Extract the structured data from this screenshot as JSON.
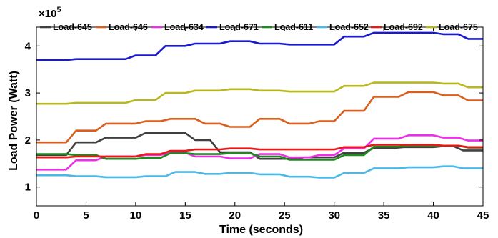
{
  "chart_data": {
    "type": "line",
    "xlabel": "Time (seconds)",
    "ylabel": "Load Power (Watt)",
    "y_exponent_label": "×10",
    "y_exponent_power": "5",
    "y_scale_factor": 100000,
    "xlim": [
      0,
      45
    ],
    "ylim": [
      0.6,
      4.4
    ],
    "x_ticks": [
      0,
      5,
      10,
      15,
      20,
      25,
      30,
      35,
      40,
      45
    ],
    "x_tick_labels": [
      "0",
      "5",
      "10",
      "15",
      "20",
      "25",
      "30",
      "35",
      "40",
      "45"
    ],
    "y_ticks": [
      1,
      2,
      3,
      4
    ],
    "y_tick_labels": [
      "1",
      "2",
      "3",
      "4"
    ],
    "grid": false,
    "legend_position": "top",
    "series": [
      {
        "name": "Load-645",
        "color": "#404040",
        "points": [
          [
            0,
            1.68
          ],
          [
            3,
            1.68
          ],
          [
            4,
            1.95
          ],
          [
            6,
            1.95
          ],
          [
            7,
            2.05
          ],
          [
            10,
            2.05
          ],
          [
            11,
            2.15
          ],
          [
            15,
            2.15
          ],
          [
            16,
            2.0
          ],
          [
            17.5,
            2.0
          ],
          [
            18.5,
            1.74
          ],
          [
            21.5,
            1.74
          ],
          [
            22.5,
            1.6
          ],
          [
            26,
            1.6
          ],
          [
            27,
            1.63
          ],
          [
            30,
            1.63
          ],
          [
            31,
            1.73
          ],
          [
            33,
            1.73
          ],
          [
            34,
            1.83
          ],
          [
            36,
            1.83
          ],
          [
            37,
            1.85
          ],
          [
            40,
            1.85
          ],
          [
            41,
            1.87
          ],
          [
            42,
            1.87
          ],
          [
            43,
            1.78
          ],
          [
            45,
            1.78
          ]
        ]
      },
      {
        "name": "Load-646",
        "color": "#d95f1f",
        "points": [
          [
            0,
            1.95
          ],
          [
            3,
            1.95
          ],
          [
            4,
            2.2
          ],
          [
            6,
            2.2
          ],
          [
            7,
            2.35
          ],
          [
            10,
            2.35
          ],
          [
            11,
            2.4
          ],
          [
            12.5,
            2.4
          ],
          [
            13.5,
            2.45
          ],
          [
            16,
            2.45
          ],
          [
            17,
            2.35
          ],
          [
            18.5,
            2.35
          ],
          [
            19.5,
            2.28
          ],
          [
            21.5,
            2.28
          ],
          [
            22.5,
            2.45
          ],
          [
            24.5,
            2.45
          ],
          [
            25.5,
            2.35
          ],
          [
            27.5,
            2.35
          ],
          [
            28.5,
            2.4
          ],
          [
            30,
            2.4
          ],
          [
            31,
            2.62
          ],
          [
            33,
            2.62
          ],
          [
            34,
            2.92
          ],
          [
            36.5,
            2.92
          ],
          [
            37.5,
            3.02
          ],
          [
            40,
            3.02
          ],
          [
            41,
            2.95
          ],
          [
            42.5,
            2.95
          ],
          [
            43.5,
            2.84
          ],
          [
            45,
            2.84
          ]
        ]
      },
      {
        "name": "Load-634",
        "color": "#ee2ee8",
        "points": [
          [
            0,
            1.37
          ],
          [
            3,
            1.37
          ],
          [
            4,
            1.57
          ],
          [
            6,
            1.57
          ],
          [
            7,
            1.65
          ],
          [
            10,
            1.65
          ],
          [
            11,
            1.68
          ],
          [
            12.5,
            1.68
          ],
          [
            13.5,
            1.73
          ],
          [
            15,
            1.73
          ],
          [
            16,
            1.65
          ],
          [
            18.5,
            1.65
          ],
          [
            19.5,
            1.61
          ],
          [
            21.5,
            1.61
          ],
          [
            22.5,
            1.7
          ],
          [
            24.5,
            1.7
          ],
          [
            25.5,
            1.63
          ],
          [
            27.5,
            1.63
          ],
          [
            28.5,
            1.68
          ],
          [
            30,
            1.68
          ],
          [
            31,
            1.82
          ],
          [
            33,
            1.82
          ],
          [
            34,
            2.03
          ],
          [
            36.5,
            2.03
          ],
          [
            37.5,
            2.1
          ],
          [
            40,
            2.1
          ],
          [
            41,
            2.05
          ],
          [
            42.5,
            2.05
          ],
          [
            43.5,
            1.99
          ],
          [
            45,
            1.99
          ]
        ]
      },
      {
        "name": "Load-671",
        "color": "#1a1acc",
        "points": [
          [
            0,
            3.7
          ],
          [
            3,
            3.7
          ],
          [
            4,
            3.72
          ],
          [
            9,
            3.72
          ],
          [
            10,
            3.8
          ],
          [
            12,
            3.8
          ],
          [
            13,
            4.0
          ],
          [
            15,
            4.0
          ],
          [
            16,
            4.05
          ],
          [
            18.5,
            4.05
          ],
          [
            19.5,
            4.1
          ],
          [
            21.5,
            4.1
          ],
          [
            22.5,
            4.05
          ],
          [
            24.5,
            4.05
          ],
          [
            25.5,
            4.03
          ],
          [
            30,
            4.03
          ],
          [
            31,
            4.2
          ],
          [
            33,
            4.2
          ],
          [
            34,
            4.28
          ],
          [
            40,
            4.28
          ],
          [
            41,
            4.25
          ],
          [
            42.5,
            4.25
          ],
          [
            43.5,
            4.15
          ],
          [
            45,
            4.15
          ]
        ]
      },
      {
        "name": "Load-611",
        "color": "#1c8a1c",
        "points": [
          [
            0,
            1.7
          ],
          [
            3,
            1.7
          ],
          [
            4,
            1.68
          ],
          [
            6,
            1.68
          ],
          [
            7,
            1.6
          ],
          [
            10,
            1.6
          ],
          [
            11,
            1.62
          ],
          [
            12.5,
            1.62
          ],
          [
            13.5,
            1.72
          ],
          [
            15,
            1.72
          ],
          [
            16,
            1.7
          ],
          [
            18.5,
            1.7
          ],
          [
            19.5,
            1.72
          ],
          [
            21.5,
            1.72
          ],
          [
            22.5,
            1.65
          ],
          [
            24.5,
            1.65
          ],
          [
            25.5,
            1.58
          ],
          [
            30,
            1.58
          ],
          [
            31,
            1.68
          ],
          [
            33,
            1.68
          ],
          [
            34,
            1.86
          ],
          [
            36.5,
            1.86
          ],
          [
            37.5,
            1.88
          ],
          [
            40,
            1.88
          ],
          [
            41,
            1.88
          ],
          [
            42.5,
            1.88
          ],
          [
            43.5,
            1.84
          ],
          [
            45,
            1.84
          ]
        ]
      },
      {
        "name": "Load-652",
        "color": "#4ab8e8",
        "points": [
          [
            0,
            1.25
          ],
          [
            3,
            1.25
          ],
          [
            4,
            1.23
          ],
          [
            6,
            1.23
          ],
          [
            7,
            1.21
          ],
          [
            10,
            1.21
          ],
          [
            11,
            1.23
          ],
          [
            13,
            1.23
          ],
          [
            14,
            1.32
          ],
          [
            16,
            1.32
          ],
          [
            17,
            1.28
          ],
          [
            18.5,
            1.28
          ],
          [
            19.5,
            1.3
          ],
          [
            21.5,
            1.3
          ],
          [
            22.5,
            1.27
          ],
          [
            24.5,
            1.27
          ],
          [
            25.5,
            1.22
          ],
          [
            27.5,
            1.22
          ],
          [
            28.5,
            1.2
          ],
          [
            30,
            1.2
          ],
          [
            31,
            1.3
          ],
          [
            33,
            1.3
          ],
          [
            34,
            1.4
          ],
          [
            36.5,
            1.4
          ],
          [
            37.5,
            1.42
          ],
          [
            40,
            1.42
          ],
          [
            41,
            1.44
          ],
          [
            42,
            1.44
          ],
          [
            43,
            1.4
          ],
          [
            45,
            1.4
          ]
        ]
      },
      {
        "name": "Load-692",
        "color": "#e81818",
        "points": [
          [
            0,
            1.63
          ],
          [
            3,
            1.63
          ],
          [
            4,
            1.65
          ],
          [
            10,
            1.65
          ],
          [
            11,
            1.7
          ],
          [
            12.5,
            1.7
          ],
          [
            13.5,
            1.77
          ],
          [
            15,
            1.77
          ],
          [
            16,
            1.8
          ],
          [
            18.5,
            1.8
          ],
          [
            19.5,
            1.82
          ],
          [
            21.5,
            1.82
          ],
          [
            22.5,
            1.8
          ],
          [
            30,
            1.8
          ],
          [
            31,
            1.85
          ],
          [
            33,
            1.85
          ],
          [
            34,
            1.9
          ],
          [
            40,
            1.9
          ],
          [
            41,
            1.88
          ],
          [
            42.5,
            1.88
          ],
          [
            43.5,
            1.85
          ],
          [
            45,
            1.85
          ]
        ]
      },
      {
        "name": "Load-675",
        "color": "#b8b81a",
        "points": [
          [
            0,
            2.77
          ],
          [
            3,
            2.77
          ],
          [
            4,
            2.79
          ],
          [
            9,
            2.79
          ],
          [
            10,
            2.85
          ],
          [
            12,
            2.85
          ],
          [
            13,
            3.0
          ],
          [
            15,
            3.0
          ],
          [
            16,
            3.05
          ],
          [
            18.5,
            3.05
          ],
          [
            19.5,
            3.08
          ],
          [
            21.5,
            3.08
          ],
          [
            22.5,
            3.05
          ],
          [
            24.5,
            3.05
          ],
          [
            25.5,
            3.03
          ],
          [
            30,
            3.03
          ],
          [
            31,
            3.15
          ],
          [
            33,
            3.15
          ],
          [
            34,
            3.22
          ],
          [
            40,
            3.22
          ],
          [
            41,
            3.2
          ],
          [
            42.5,
            3.2
          ],
          [
            43.5,
            3.12
          ],
          [
            45,
            3.12
          ]
        ]
      }
    ]
  }
}
